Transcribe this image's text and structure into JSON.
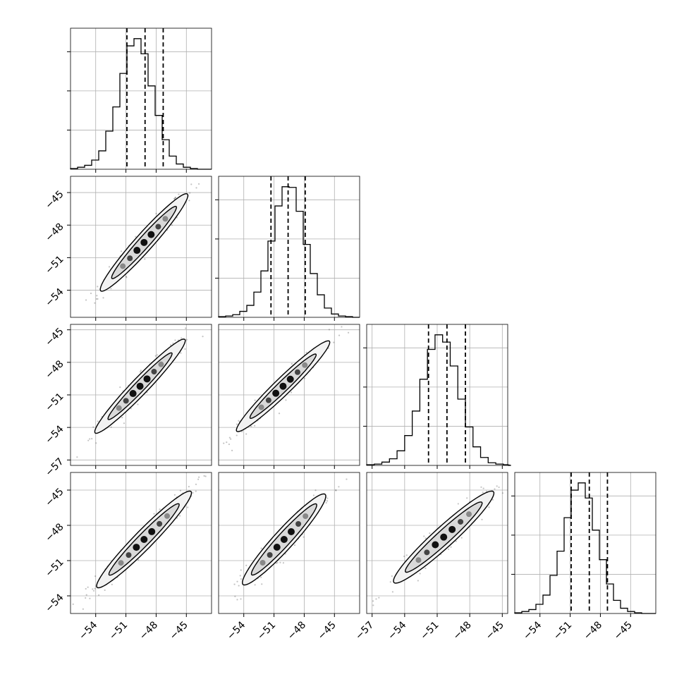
{
  "chart_data": {
    "type": "corner",
    "n_params": 4,
    "xlim": [
      [
        -56.5,
        -42.5
      ],
      [
        -56.5,
        -42.5
      ],
      [
        -57.5,
        -44.5
      ],
      [
        -56.5,
        -42.5
      ]
    ],
    "ylim": [
      null,
      [
        -56.5,
        -43.5
      ],
      [
        -57.5,
        -44.5
      ],
      [
        -55.5,
        -43.5
      ]
    ],
    "xticks": [
      [
        -54,
        -51,
        -48,
        -45
      ],
      [
        -54,
        -51,
        -48,
        -45
      ],
      [
        -57,
        -54,
        -51,
        -48,
        -45
      ],
      [
        -54,
        -51,
        -48,
        -45
      ]
    ],
    "yticks": [
      null,
      [
        -45,
        -48,
        -51,
        -54
      ],
      [
        -45,
        -48,
        -51,
        -54,
        -57
      ],
      [
        -45,
        -48,
        -51,
        -54
      ]
    ],
    "quantiles": [
      [
        -50.9,
        -49.1,
        -47.3
      ],
      [
        -51.3,
        -49.6,
        -47.9
      ],
      [
        -51.8,
        -50.1,
        -48.4
      ],
      [
        -50.9,
        -49.1,
        -47.3
      ]
    ],
    "histograms": [
      {
        "edges_start": -56.5,
        "bin_width": 0.7,
        "counts": [
          1,
          3,
          6,
          14,
          28,
          58,
          95,
          146,
          188,
          199,
          176,
          127,
          82,
          45,
          20,
          8,
          3,
          1,
          0,
          0
        ]
      },
      {
        "edges_start": -56.5,
        "bin_width": 0.7,
        "counts": [
          1,
          2,
          4,
          9,
          18,
          38,
          70,
          115,
          168,
          197,
          196,
          160,
          110,
          66,
          34,
          14,
          5,
          2,
          1,
          0
        ]
      },
      {
        "edges_start": -57.5,
        "bin_width": 0.7,
        "counts": [
          1,
          2,
          5,
          10,
          22,
          45,
          82,
          130,
          175,
          197,
          186,
          150,
          100,
          58,
          28,
          12,
          4,
          2,
          1,
          0
        ]
      },
      {
        "edges_start": -56.5,
        "bin_width": 0.7,
        "counts": [
          1,
          3,
          6,
          14,
          28,
          58,
          95,
          146,
          188,
          199,
          176,
          127,
          82,
          45,
          20,
          8,
          3,
          1,
          0,
          0
        ]
      }
    ],
    "ellipses": [
      {
        "row": 1,
        "col": 0,
        "cx": -49.2,
        "cy": -49.6,
        "angle_deg": 46,
        "a1": 4.6,
        "b1": 0.55,
        "a2": 6.2,
        "b2": 0.85
      },
      {
        "row": 2,
        "col": 0,
        "cx": -49.6,
        "cy": -50.2,
        "angle_deg": 44,
        "a1": 4.4,
        "b1": 0.5,
        "a2": 6.2,
        "b2": 0.8
      },
      {
        "row": 2,
        "col": 1,
        "cx": -50.1,
        "cy": -50.2,
        "angle_deg": 42,
        "a1": 4.4,
        "b1": 0.5,
        "a2": 6.2,
        "b2": 0.8
      },
      {
        "row": 3,
        "col": 0,
        "cx": -49.2,
        "cy": -49.2,
        "angle_deg": 41,
        "a1": 4.6,
        "b1": 0.55,
        "a2": 6.2,
        "b2": 0.85
      },
      {
        "row": 3,
        "col": 1,
        "cx": -50.0,
        "cy": -49.2,
        "angle_deg": 43,
        "a1": 4.4,
        "b1": 0.6,
        "a2": 5.6,
        "b2": 0.9
      },
      {
        "row": 3,
        "col": 2,
        "cx": -50.4,
        "cy": -49.0,
        "angle_deg": 40,
        "a1": 4.6,
        "b1": 0.6,
        "a2": 6.0,
        "b2": 0.9
      }
    ]
  }
}
